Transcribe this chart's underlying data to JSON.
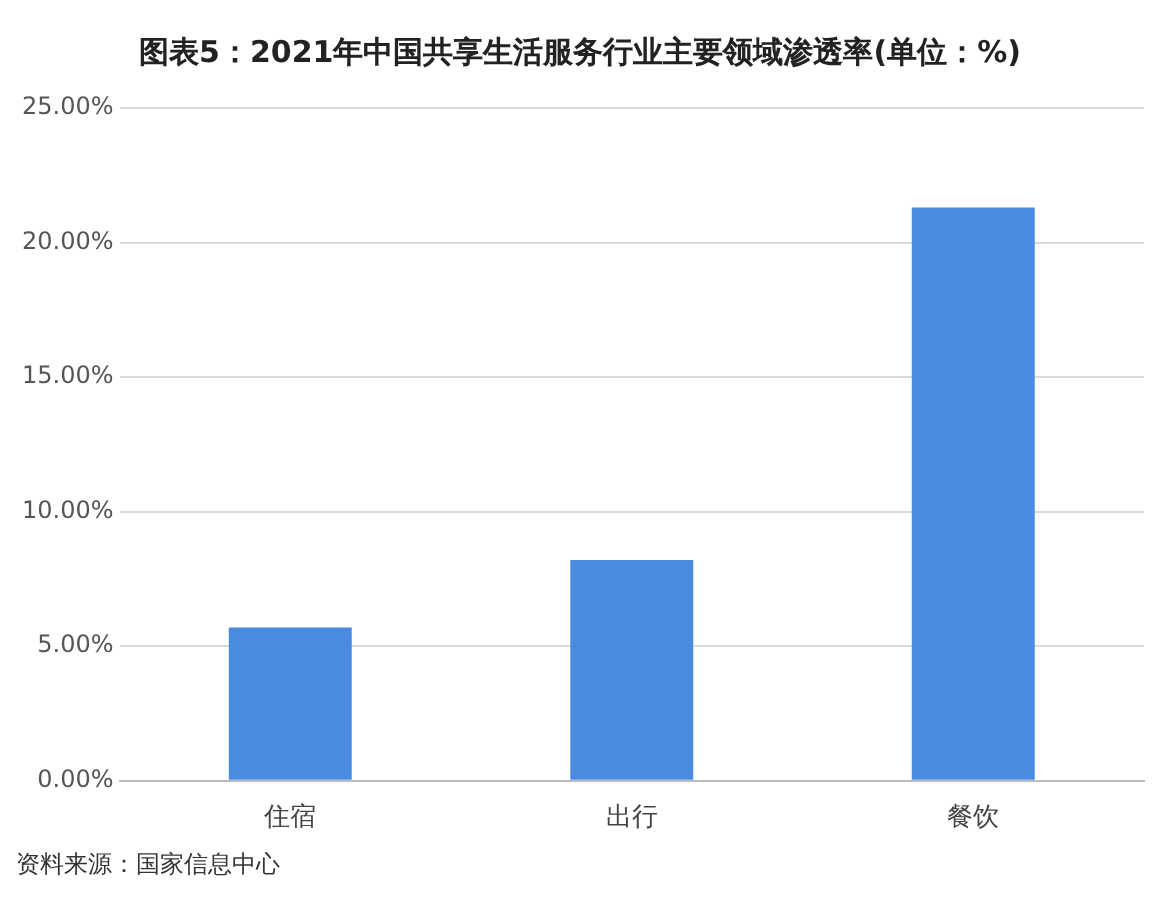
{
  "chart_data": {
    "type": "bar",
    "title": "图表5：2021年中国共享生活服务行业主要领域渗透率(单位：%)",
    "categories": [
      "住宿",
      "出行",
      "餐饮"
    ],
    "values": [
      5.7,
      8.2,
      21.3
    ],
    "color": "#4a8be2",
    "ylim": [
      0,
      25
    ],
    "yticks": [
      {
        "value": 0,
        "label": "0.00%"
      },
      {
        "value": 5,
        "label": "5.00%"
      },
      {
        "value": 10,
        "label": "10.00%"
      },
      {
        "value": 15,
        "label": "15.00%"
      },
      {
        "value": 20,
        "label": "20.00%"
      },
      {
        "value": 25,
        "label": "25.00%"
      }
    ],
    "grid": "y",
    "annotations": [
      "资料来源：国家信息中心"
    ]
  }
}
